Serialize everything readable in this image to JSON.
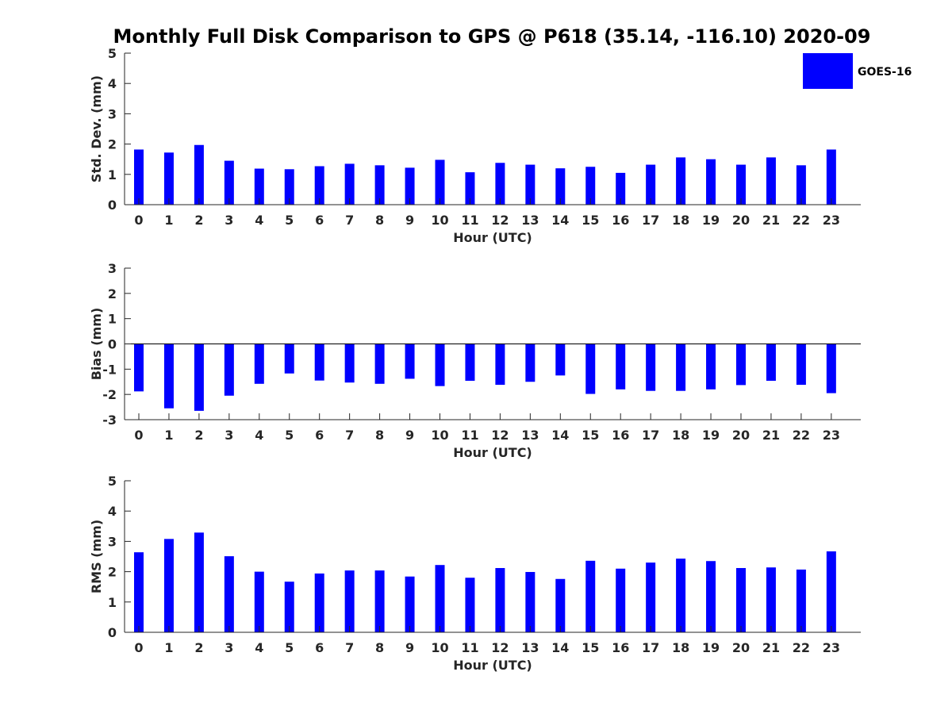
{
  "title": "Monthly Full Disk Comparison to GPS @ P618 (35.14, -116.10) 2020-09",
  "legend": {
    "label": "GOES-16",
    "color": "#0000ff"
  },
  "chart_data": [
    {
      "type": "bar",
      "xlabel": "Hour (UTC)",
      "ylabel": "Std. Dev. (mm)",
      "ylim": [
        0,
        5
      ],
      "yticks": [
        0,
        1,
        2,
        3,
        4,
        5
      ],
      "categories": [
        "0",
        "1",
        "2",
        "3",
        "4",
        "5",
        "6",
        "7",
        "8",
        "9",
        "10",
        "11",
        "12",
        "13",
        "14",
        "15",
        "16",
        "17",
        "18",
        "19",
        "20",
        "21",
        "22",
        "23"
      ],
      "series": [
        {
          "name": "GOES-16",
          "values": [
            1.82,
            1.72,
            1.97,
            1.45,
            1.19,
            1.17,
            1.27,
            1.35,
            1.3,
            1.22,
            1.48,
            1.07,
            1.38,
            1.32,
            1.2,
            1.25,
            1.05,
            1.32,
            1.56,
            1.5,
            1.32,
            1.56,
            1.3,
            1.82
          ]
        }
      ],
      "zero_line": false
    },
    {
      "type": "bar",
      "xlabel": "Hour (UTC)",
      "ylabel": "Bias (mm)",
      "ylim": [
        -3,
        3
      ],
      "yticks": [
        -3,
        -2,
        -1,
        0,
        1,
        2,
        3
      ],
      "categories": [
        "0",
        "1",
        "2",
        "3",
        "4",
        "5",
        "6",
        "7",
        "8",
        "9",
        "10",
        "11",
        "12",
        "13",
        "14",
        "15",
        "16",
        "17",
        "18",
        "19",
        "20",
        "21",
        "22",
        "23"
      ],
      "series": [
        {
          "name": "GOES-16",
          "values": [
            -1.88,
            -2.55,
            -2.65,
            -2.05,
            -1.58,
            -1.17,
            -1.45,
            -1.53,
            -1.58,
            -1.38,
            -1.67,
            -1.46,
            -1.62,
            -1.5,
            -1.25,
            -1.98,
            -1.8,
            -1.86,
            -1.86,
            -1.8,
            -1.63,
            -1.46,
            -1.62,
            -1.95
          ]
        }
      ],
      "zero_line": true
    },
    {
      "type": "bar",
      "xlabel": "Hour (UTC)",
      "ylabel": "RMS (mm)",
      "ylim": [
        0,
        5
      ],
      "yticks": [
        0,
        1,
        2,
        3,
        4,
        5
      ],
      "categories": [
        "0",
        "1",
        "2",
        "3",
        "4",
        "5",
        "6",
        "7",
        "8",
        "9",
        "10",
        "11",
        "12",
        "13",
        "14",
        "15",
        "16",
        "17",
        "18",
        "19",
        "20",
        "21",
        "22",
        "23"
      ],
      "series": [
        {
          "name": "GOES-16",
          "values": [
            2.64,
            3.08,
            3.29,
            2.51,
            2.0,
            1.67,
            1.94,
            2.04,
            2.04,
            1.84,
            2.22,
            1.8,
            2.12,
            1.99,
            1.76,
            2.36,
            2.1,
            2.3,
            2.43,
            2.35,
            2.12,
            2.14,
            2.07,
            2.67
          ]
        }
      ],
      "zero_line": false
    }
  ]
}
